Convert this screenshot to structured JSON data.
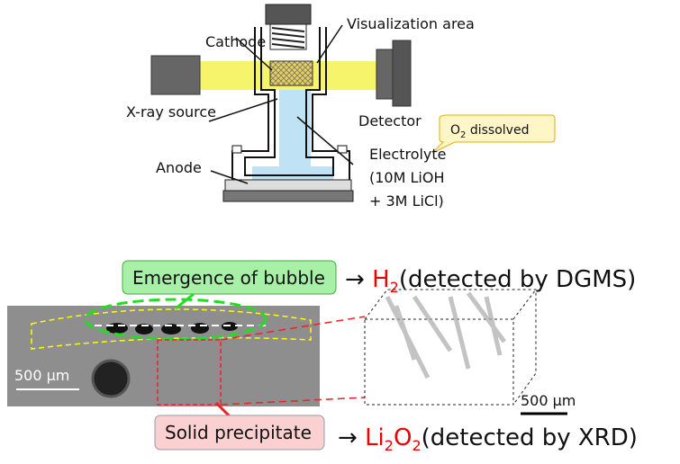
{
  "apparatus": {
    "cathode": "Cathode",
    "visualization_area": "Visualization area",
    "xray_source": "X-ray source",
    "detector": "Detector",
    "o2_callout": [
      "O",
      "2",
      " dissolved"
    ],
    "anode": "Anode",
    "electrolyte": [
      "Electrolyte",
      "(10M LiOH",
      "+ 3M LiCl)"
    ]
  },
  "results": {
    "bubble": {
      "label": "Emergence of bubble",
      "arrow": "→",
      "product": [
        "H",
        "2"
      ],
      "method": "(detected by DGMS)"
    },
    "precipitate": {
      "label": "Solid precipitate",
      "arrow": "→",
      "product": [
        "Li",
        "2",
        "O",
        "2"
      ],
      "method": "(detected by XRD)"
    },
    "scale_bar_left": "500 μm",
    "scale_bar_right": "500 μm"
  }
}
